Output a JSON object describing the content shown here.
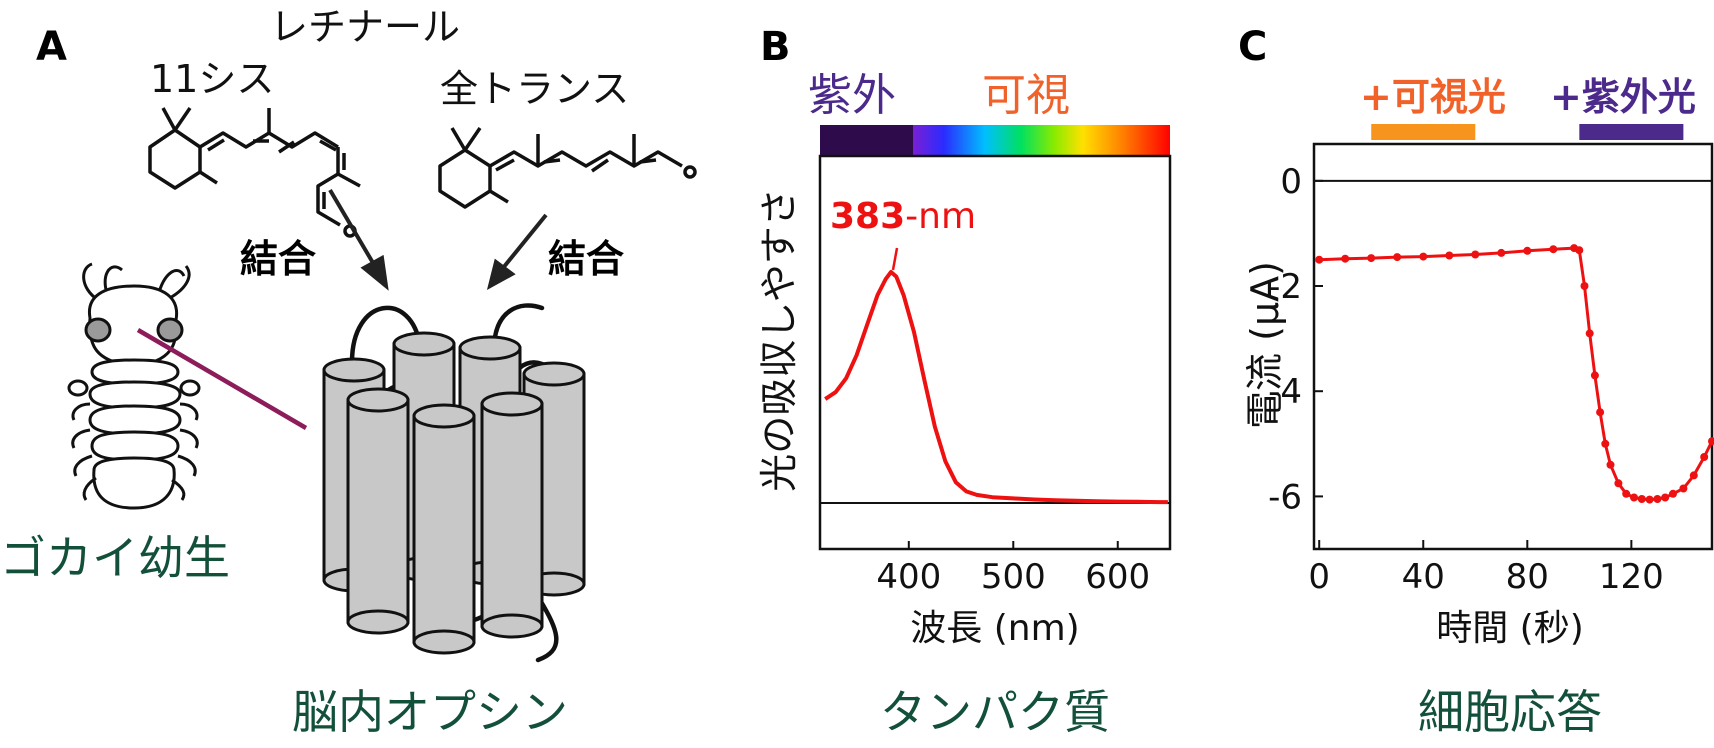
{
  "panel_a": {
    "letter": "A",
    "retinal_title": "レチナール",
    "cis_label": "11シス",
    "trans_label": "全トランス",
    "bind_left": "結合",
    "bind_right": "結合",
    "larva_label": "ゴカイ幼生",
    "opsin_label": "脳内オプシン",
    "colors": {
      "green_label": "#13503a",
      "pointer_line": "#8c1d5a",
      "cylinder_fill": "#c8c8c8"
    }
  },
  "panel_b": {
    "letter": "B",
    "uv_label": "紫外",
    "visible_label": "可視",
    "peak_bold": "383",
    "peak_unit": "-nm",
    "ylabel": "光の吸収しやすさ",
    "xlabel": "波長 (nm)",
    "caption": "タンパク質",
    "colors": {
      "uv": "#4b2a8c",
      "visible": "#f0622a",
      "curve": "#ee1111"
    }
  },
  "panel_c": {
    "letter": "C",
    "visible_label": "+可視光",
    "uv_label": "+紫外光",
    "ylabel": "電流 (μA)",
    "xlabel": "時間 (秒)",
    "caption": "細胞応答",
    "colors": {
      "visible_bar": "#f7941d",
      "uv_bar": "#4b2a8c",
      "curve": "#ee1111"
    }
  },
  "chart_data": [
    {
      "type": "line",
      "xlabel": "波長 (nm)",
      "ylabel": "光の吸収しやすさ",
      "xlim": [
        315,
        650
      ],
      "xticks": [
        "400",
        "500",
        "600"
      ],
      "annotation": "383-nm",
      "x": [
        320,
        330,
        340,
        350,
        360,
        370,
        378,
        383,
        388,
        395,
        405,
        415,
        425,
        435,
        445,
        455,
        465,
        480,
        500,
        520,
        540,
        560,
        580,
        600,
        620,
        640,
        648
      ],
      "y": [
        0.45,
        0.48,
        0.54,
        0.64,
        0.77,
        0.9,
        0.97,
        1.0,
        0.98,
        0.9,
        0.74,
        0.53,
        0.33,
        0.18,
        0.09,
        0.05,
        0.035,
        0.025,
        0.02,
        0.015,
        0.012,
        0.01,
        0.008,
        0.006,
        0.005,
        0.004,
        0.004
      ]
    },
    {
      "type": "line",
      "xlabel": "時間 (秒)",
      "ylabel": "電流 (μA)",
      "xlim": [
        -2,
        151
      ],
      "ylim": [
        -7,
        0.7
      ],
      "xticks": [
        "0",
        "40",
        "80",
        "120"
      ],
      "yticks": [
        "0",
        "-2",
        "-4",
        "-6"
      ],
      "annotations": [
        {
          "label": "+可視光",
          "x_start": 20,
          "x_end": 60
        },
        {
          "label": "+紫外光",
          "x_start": 100,
          "x_end": 140
        }
      ],
      "x": [
        0,
        10,
        20,
        30,
        40,
        50,
        60,
        70,
        80,
        90,
        98,
        100,
        102,
        104,
        106,
        108,
        110,
        112,
        115,
        118,
        121,
        124,
        127,
        130,
        133,
        136,
        140,
        144,
        148,
        151
      ],
      "y": [
        -1.5,
        -1.48,
        -1.47,
        -1.45,
        -1.44,
        -1.42,
        -1.4,
        -1.37,
        -1.33,
        -1.3,
        -1.28,
        -1.32,
        -2.0,
        -2.9,
        -3.7,
        -4.4,
        -5.0,
        -5.4,
        -5.75,
        -5.95,
        -6.02,
        -6.05,
        -6.06,
        -6.05,
        -6.02,
        -5.95,
        -5.85,
        -5.6,
        -5.25,
        -4.95
      ]
    }
  ]
}
